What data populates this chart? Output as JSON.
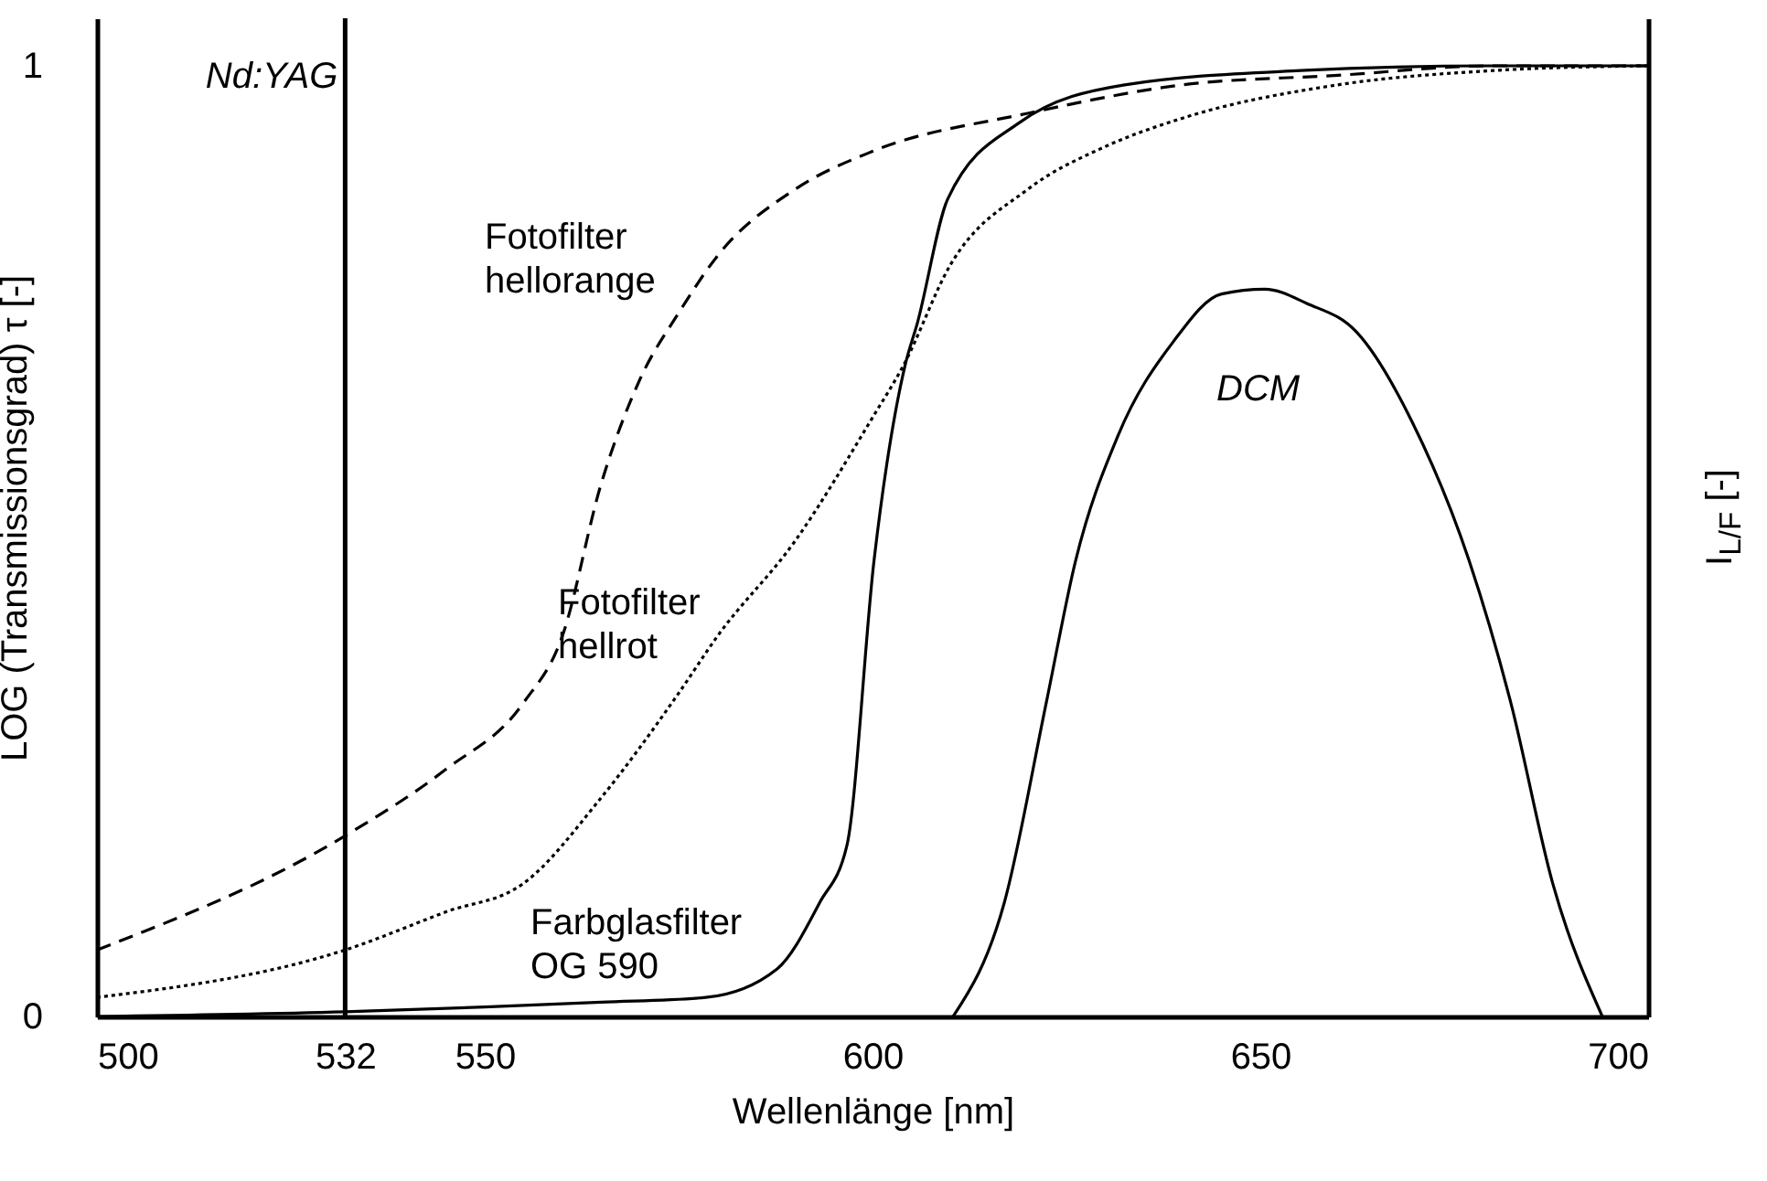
{
  "chart_data": {
    "type": "line",
    "xlabel": "Wellenlänge [nm]",
    "ylabel": "LOG (Transmissionsgrad) τ [-]",
    "y2label": "I$_{L/F}$ [-]",
    "xlim": [
      500,
      700
    ],
    "xticks": [
      500,
      532,
      550,
      600,
      650,
      700
    ],
    "ylim": [
      0,
      1.05
    ],
    "yticks": [
      0,
      1
    ],
    "grid": false,
    "series": [
      {
        "name": "Fotofilter hellorange",
        "color": "#000000",
        "line_style": "dashed",
        "x": [
          500,
          532,
          545,
          555,
          560,
          565,
          570,
          575,
          580,
          590,
          600,
          620,
          640,
          660,
          680,
          700
        ],
        "values": [
          0.07,
          0.19,
          0.26,
          0.33,
          0.4,
          0.56,
          0.67,
          0.74,
          0.8,
          0.87,
          0.91,
          0.95,
          0.98,
          0.99,
          1.0,
          1.0
        ]
      },
      {
        "name": "Fotofilter hellrot",
        "color": "#000000",
        "line_style": "dotted",
        "x": [
          500,
          532,
          545,
          555,
          565,
          575,
          580,
          590,
          600,
          604,
          610,
          620,
          630,
          640,
          660,
          680,
          700
        ],
        "values": [
          0.02,
          0.07,
          0.11,
          0.14,
          0.23,
          0.34,
          0.4,
          0.5,
          0.63,
          0.685,
          0.79,
          0.87,
          0.915,
          0.945,
          0.98,
          0.995,
          1.0
        ]
      },
      {
        "name": "Farbglasfilter OG 590",
        "color": "#000000",
        "line_style": "solid",
        "x": [
          500,
          532,
          550,
          565,
          578.5,
          587.7,
          593.2,
          596.7,
          600.2,
          604.2,
          605.8,
          609.7,
          618.9,
          632.5,
          655.2,
          680,
          700
        ],
        "values": [
          0.0,
          0.005,
          0.01,
          0.015,
          0.02,
          0.05,
          0.12,
          0.18,
          0.48,
          0.685,
          0.73,
          0.86,
          0.94,
          0.98,
          0.995,
          1.0,
          1.0
        ]
      },
      {
        "name": "DCM",
        "color": "#000000",
        "line_style": "solid",
        "x": [
          610.4,
          617,
          622.4,
          626.2,
          631.6,
          638.8,
          645,
          650.6,
          656,
          662.4,
          669.6,
          676.9,
          682.3,
          687.7,
          694.1
        ],
        "values": [
          0,
          0.12,
          0.33,
          0.48,
          0.61,
          0.71,
          0.76,
          0.765,
          0.75,
          0.72,
          0.625,
          0.48,
          0.33,
          0.14,
          0
        ]
      }
    ],
    "ref_lines": [
      {
        "axis": "x",
        "value": 532,
        "label": "Nd:YAG",
        "color": "#000000"
      }
    ]
  }
}
